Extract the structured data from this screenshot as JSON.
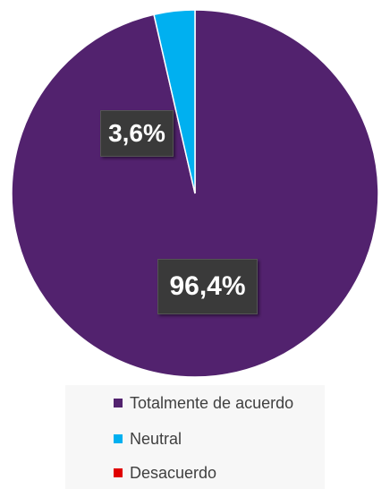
{
  "chart_data": {
    "type": "pie",
    "categories": [
      "Totalmente de acuerdo",
      "Neutral",
      "Desacuerdo"
    ],
    "values": [
      96.4,
      3.6,
      0
    ],
    "data_labels": [
      "96,4%",
      "3,6%",
      ""
    ],
    "colors": [
      "#52226e",
      "#00b0f0",
      "#e00000"
    ],
    "title": "",
    "legend": "bottom"
  }
}
